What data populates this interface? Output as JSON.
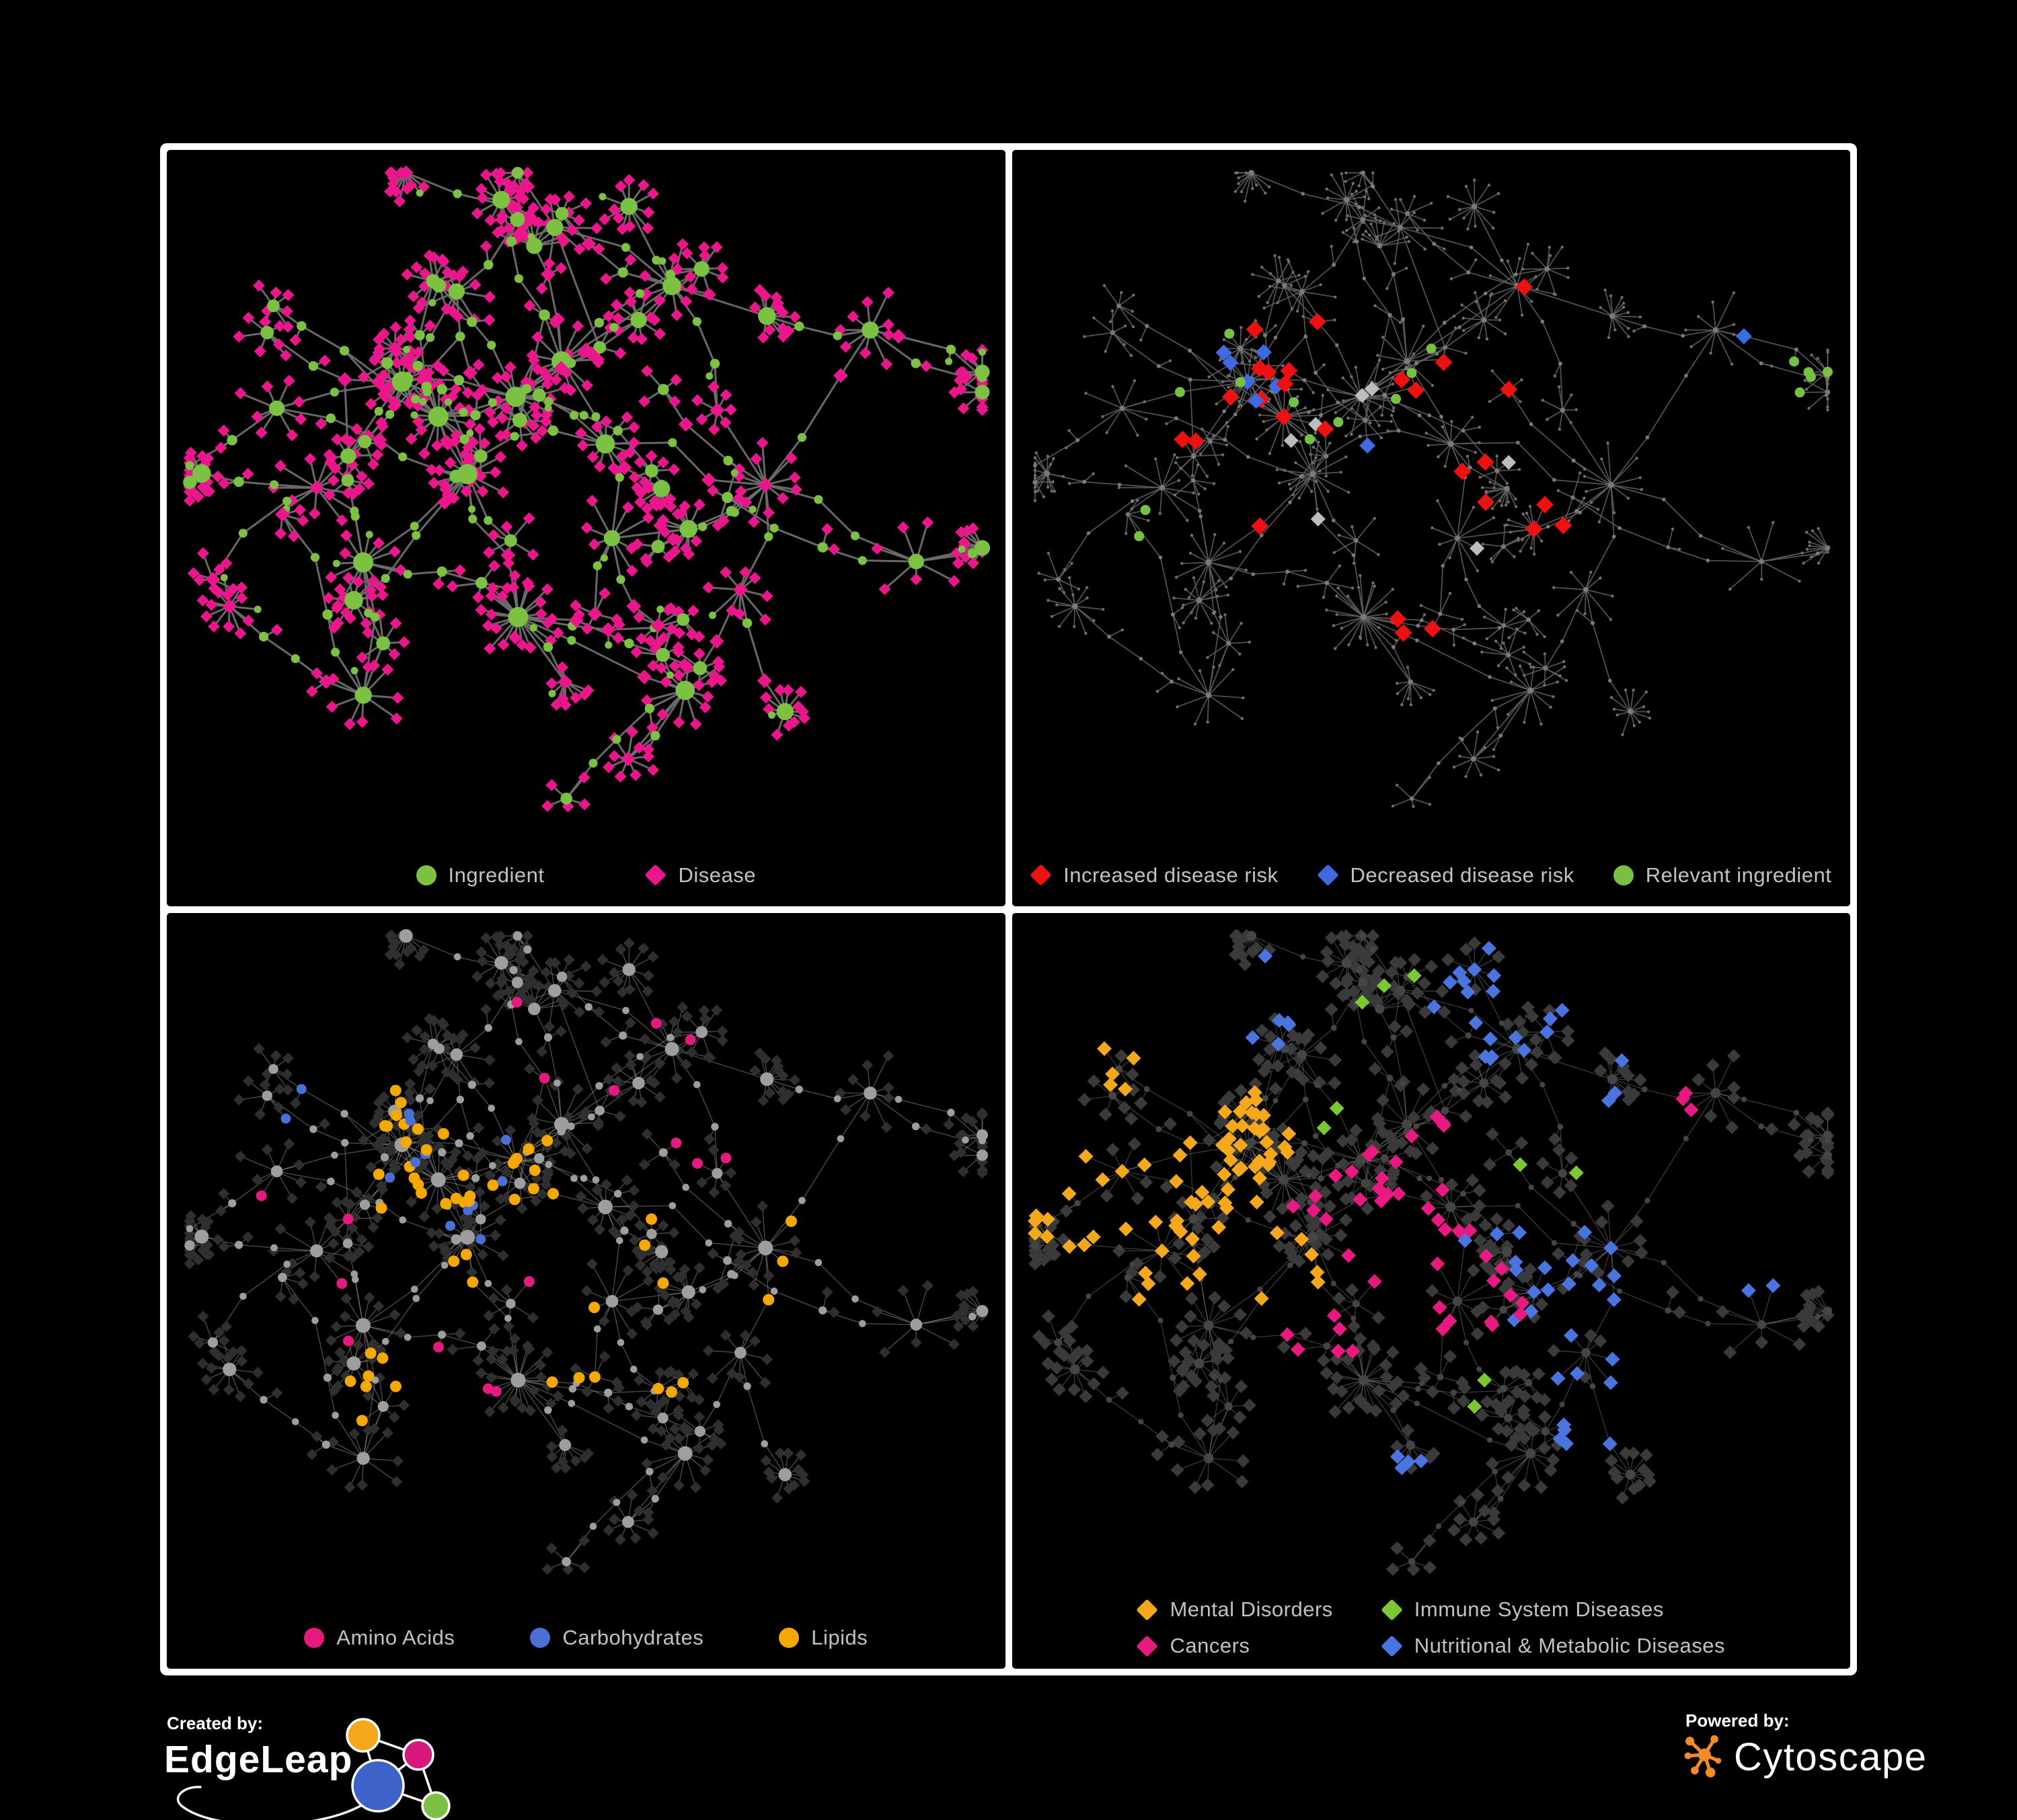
{
  "meta": {
    "background": "#000000",
    "frame_color": "#ffffff"
  },
  "network": {
    "seed": 1337,
    "hubs": [
      [
        0.33,
        0.4,
        18,
        4
      ],
      [
        0.41,
        0.36,
        15,
        4
      ],
      [
        0.36,
        0.48,
        13,
        3
      ],
      [
        0.28,
        0.34,
        12,
        3
      ],
      [
        0.47,
        0.31,
        11,
        3
      ],
      [
        0.52,
        0.44,
        10,
        3
      ],
      [
        0.42,
        0.69,
        24,
        3
      ],
      [
        0.24,
        0.6,
        11,
        3
      ],
      [
        0.13,
        0.37,
        8,
        2
      ],
      [
        0.6,
        0.21,
        9,
        3
      ],
      [
        0.72,
        0.5,
        11,
        3
      ],
      [
        0.84,
        0.27,
        9,
        3
      ],
      [
        0.62,
        0.79,
        12,
        2
      ],
      [
        0.23,
        0.81,
        9,
        2
      ],
      [
        0.47,
        0.11,
        7,
        2
      ],
      [
        0.9,
        0.6,
        7,
        2
      ],
      [
        0.69,
        0.64,
        8,
        2
      ],
      [
        0.54,
        0.57,
        8,
        2
      ],
      [
        0.18,
        0.5,
        9,
        2
      ],
      [
        0.35,
        0.22,
        8,
        2
      ]
    ]
  },
  "panels": [
    {
      "name": "ingredient-disease",
      "seed": 21,
      "style": {
        "edge": {
          "color": "#6E6E6E",
          "width": 3,
          "opacity": 0.95
        },
        "internal": {
          "shape": "circle",
          "color": "#7CC142",
          "rBase": 5.5,
          "rDeg": 0.55,
          "rMax": 15
        },
        "leaf": {
          "shape": "diamond",
          "color": "#EB168C",
          "size": 9
        }
      },
      "highlights": [
        {
          "color": "#EB168C",
          "shape": "diamond",
          "size": 11,
          "count": 40,
          "roles": [
            "hub",
            "chain"
          ],
          "regions": [
            [
              0.45,
              0.45,
              0.62
            ]
          ]
        },
        {
          "color": "#7CC142",
          "shape": "circle",
          "size": 5.5,
          "count": 35,
          "roles": [
            "leaf"
          ],
          "regions": [
            [
              0.45,
              0.45,
              0.62
            ]
          ]
        }
      ],
      "legend": {
        "columns": 1,
        "gap": 150,
        "items": [
          {
            "label": "Ingredient",
            "shape": "circle",
            "color": "#7CC142"
          },
          {
            "label": "Disease",
            "shape": "diamond",
            "color": "#EB168C"
          }
        ]
      }
    },
    {
      "name": "disease-risk",
      "seed": 22,
      "style": {
        "edge": {
          "color": "#5E5E5E",
          "width": 1.7,
          "opacity": 0.9
        },
        "internal": {
          "shape": "circle",
          "color": "#7A7A7A",
          "rBase": 2.6,
          "rDeg": 0.12,
          "rMax": 4.5
        },
        "leaf": {
          "shape": "circle",
          "color": "#6F6F6F",
          "size": 2.2
        }
      },
      "highlights": [
        {
          "color": "#ED1111",
          "shape": "diamond",
          "size": 13,
          "count": 27,
          "regions": [
            [
              0.4,
              0.4,
              0.2
            ],
            [
              0.55,
              0.6,
              0.16
            ],
            [
              0.6,
              0.3,
              0.14
            ],
            [
              0.47,
              0.5,
              0.18
            ]
          ]
        },
        {
          "color": "#4169E1",
          "shape": "diamond",
          "size": 12,
          "count": 8,
          "regions": [
            [
              0.29,
              0.34,
              0.09
            ],
            [
              0.92,
              0.26,
              0.05
            ],
            [
              0.37,
              0.42,
              0.06
            ]
          ]
        },
        {
          "color": "#BDBDBD",
          "shape": "diamond",
          "size": 11,
          "count": 7,
          "regions": [
            [
              0.42,
              0.44,
              0.12
            ],
            [
              0.55,
              0.5,
              0.1
            ],
            [
              0.33,
              0.37,
              0.08
            ]
          ]
        },
        {
          "color": "#76C043",
          "shape": "circle",
          "size": 7.5,
          "count": 17,
          "regions": [
            [
              0.3,
              0.38,
              0.13
            ],
            [
              0.46,
              0.42,
              0.11
            ],
            [
              0.21,
              0.54,
              0.09
            ],
            [
              0.56,
              0.34,
              0.09
            ],
            [
              0.93,
              0.33,
              0.05
            ]
          ]
        }
      ],
      "legend": {
        "columns": 1,
        "gap": 58,
        "items": [
          {
            "label": "Increased disease risk",
            "shape": "diamond",
            "color": "#ED1111"
          },
          {
            "label": "Decreased disease risk",
            "shape": "diamond",
            "color": "#4169E1"
          },
          {
            "label": "Relevant ingredient",
            "shape": "circle",
            "color": "#76C043"
          }
        ]
      }
    },
    {
      "name": "macronutrients",
      "seed": 23,
      "style": {
        "edge": {
          "color": "#939393",
          "width": 1.4,
          "opacity": 0.5
        },
        "internal": {
          "shape": "circle",
          "color": "#9E9E9E",
          "rBase": 4.5,
          "rDeg": 0.4,
          "rMax": 11
        },
        "leaf": {
          "shape": "diamond",
          "color": "#2F2F2F",
          "size": 8.5
        }
      },
      "highlights": [
        {
          "color": "#F5A800",
          "shape": "circle",
          "size": 8.5,
          "count": 55,
          "regions": [
            [
              0.34,
              0.26,
              0.1
            ],
            [
              0.37,
              0.42,
              0.13
            ],
            [
              0.5,
              0.62,
              0.1
            ],
            [
              0.63,
              0.55,
              0.16
            ],
            [
              0.27,
              0.7,
              0.06
            ]
          ]
        },
        {
          "color": "#4A70D6",
          "shape": "circle",
          "size": 7.5,
          "count": 13,
          "regions": [
            [
              0.33,
              0.33,
              0.09
            ],
            [
              0.13,
              0.28,
              0.04
            ],
            [
              0.78,
              0.62,
              0.05
            ],
            [
              0.39,
              0.46,
              0.08
            ]
          ]
        },
        {
          "color": "#E6197E",
          "shape": "circle",
          "size": 8,
          "count": 16,
          "regions": [
            [
              0.5,
              0.55,
              0.45
            ]
          ]
        }
      ],
      "legend": {
        "columns": 1,
        "gap": 112,
        "items": [
          {
            "label": "Amino Acids",
            "shape": "circle",
            "color": "#E6197E"
          },
          {
            "label": "Carbohydrates",
            "shape": "circle",
            "color": "#4A70D6"
          },
          {
            "label": "Lipids",
            "shape": "circle",
            "color": "#F5A800"
          }
        ]
      }
    },
    {
      "name": "disease-categories",
      "seed": 24,
      "style": {
        "edge": {
          "color": "#8C8C8C",
          "width": 1.2,
          "opacity": 0.45
        },
        "internal": {
          "shape": "circle",
          "color": "#454545",
          "rBase": 3.5,
          "rDeg": 0.3,
          "rMax": 7.5
        },
        "leaf": {
          "shape": "diamond",
          "color": "#3A3A3A",
          "size": 10
        }
      },
      "highlights": [
        {
          "color": "#F5A81C",
          "shape": "diamond",
          "size": 11,
          "count": 80,
          "regions": [
            [
              0.16,
              0.44,
              0.14
            ],
            [
              0.25,
              0.33,
              0.09
            ],
            [
              0.12,
              0.2,
              0.07
            ],
            [
              0.3,
              0.52,
              0.07
            ]
          ]
        },
        {
          "color": "#E81A82",
          "shape": "diamond",
          "size": 11,
          "count": 50,
          "regions": [
            [
              0.44,
              0.48,
              0.12
            ],
            [
              0.52,
              0.57,
              0.09
            ],
            [
              0.36,
              0.6,
              0.07
            ],
            [
              0.83,
              0.3,
              0.05
            ],
            [
              0.48,
              0.36,
              0.07
            ]
          ]
        },
        {
          "color": "#4A74E0",
          "shape": "diamond",
          "size": 11,
          "count": 62,
          "regions": [
            [
              0.64,
              0.52,
              0.11
            ],
            [
              0.76,
              0.3,
              0.11
            ],
            [
              0.58,
              0.13,
              0.09
            ],
            [
              0.42,
              0.82,
              0.08
            ],
            [
              0.88,
              0.5,
              0.09
            ],
            [
              0.3,
              0.13,
              0.07
            ],
            [
              0.7,
              0.72,
              0.08
            ]
          ]
        },
        {
          "color": "#7CC832",
          "shape": "diamond",
          "size": 11,
          "count": 9,
          "regions": [
            [
              0.5,
              0.42,
              0.33
            ]
          ]
        }
      ],
      "legend": {
        "columns": 2,
        "gap": 72,
        "items": [
          {
            "label": "Mental Disorders",
            "shape": "diamond",
            "color": "#F5A81C"
          },
          {
            "label": "Immune System Diseases",
            "shape": "diamond",
            "color": "#7CC832"
          },
          {
            "label": "Cancers",
            "shape": "diamond",
            "color": "#E81A82"
          },
          {
            "label": "Nutritional & Metabolic Diseases",
            "shape": "diamond",
            "color": "#4A74E0"
          }
        ]
      }
    }
  ],
  "footer": {
    "created_by": {
      "label": "Created by:",
      "brand": "EdgeLeap",
      "logo_colors": {
        "orange": "#F5A81C",
        "pink": "#D6197C",
        "blue": "#3E63C8",
        "green": "#7CC142"
      }
    },
    "powered_by": {
      "label": "Powered by:",
      "brand": "Cytoscape",
      "logo_color": "#F28C26"
    }
  }
}
